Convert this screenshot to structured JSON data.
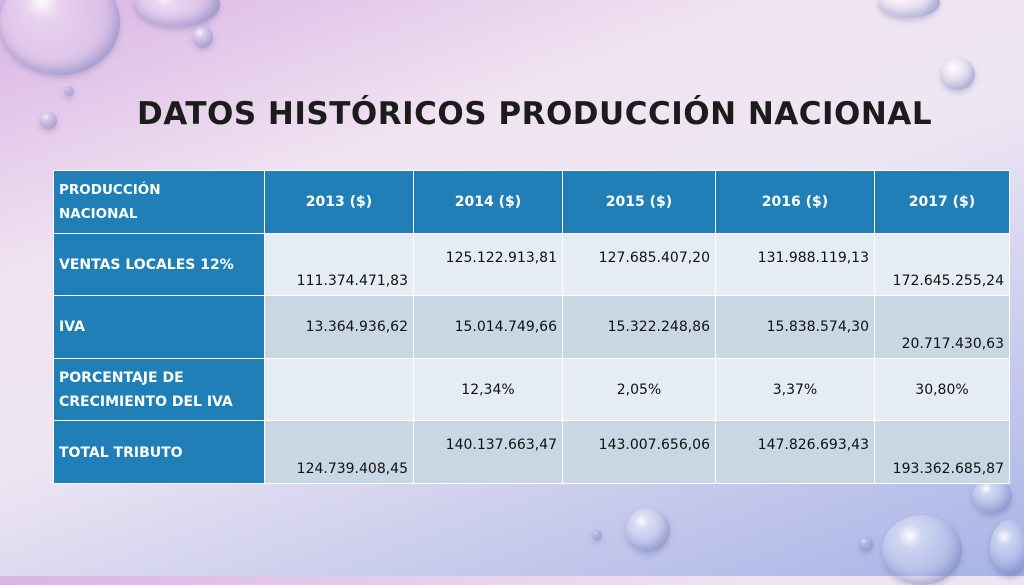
{
  "title": "DATOS HISTÓRICOS PRODUCCIÓN NACIONAL",
  "table": {
    "header": {
      "corner_line1": "PRODUCCIÓN",
      "corner_line2": "NACIONAL",
      "years": [
        "2013 ($)",
        "2014 ($)",
        "2015 ($)",
        "2016 ($)",
        "2017 ($)"
      ]
    },
    "rows": [
      {
        "label": "VENTAS LOCALES 12%",
        "values": [
          "111.374.471,83",
          "125.122.913,81",
          "127.685.407,20",
          "131.988.119,13",
          "172.645.255,24"
        ]
      },
      {
        "label": "IVA",
        "values": [
          "13.364.936,62",
          "15.014.749,66",
          "15.322.248,86",
          "15.838.574,30",
          "20.717.430,63"
        ]
      },
      {
        "label_line1": "PORCENTAJE DE",
        "label_line2": "CRECIMIENTO DEL IVA",
        "values": [
          "",
          "12,34%",
          "2,05%",
          "3,37%",
          "30,80%"
        ]
      },
      {
        "label": "TOTAL TRIBUTO",
        "values": [
          "124.739.408,45",
          "140.137.663,47",
          "143.007.656,06",
          "147.826.693,43",
          "193.362.685,87"
        ]
      }
    ]
  },
  "colors": {
    "header_blue": "#1f7fb6",
    "row_light": "#e6ecf3",
    "row_dark": "#c9d6e4"
  }
}
